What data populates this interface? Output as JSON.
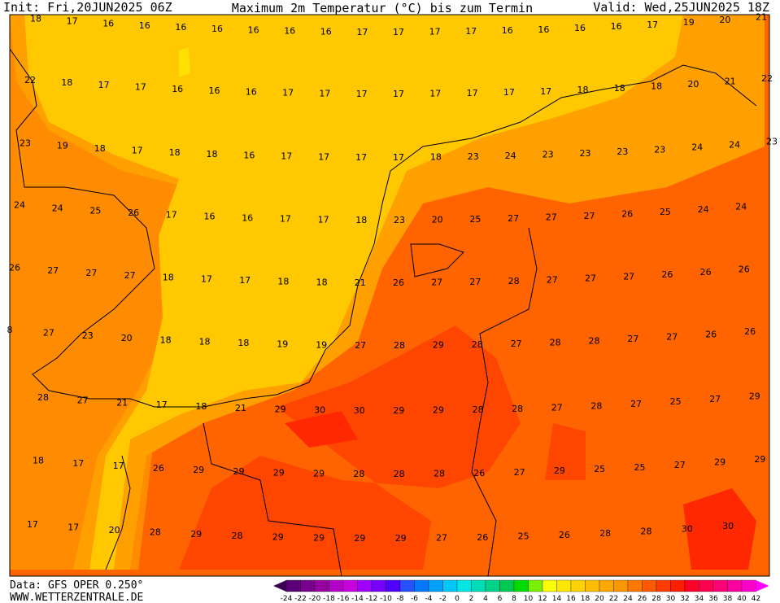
{
  "header": {
    "init": "Init: Fri,20JUN2025 06Z",
    "title": "Maximum 2m Temperatur (°C) bis zum Termin",
    "valid": "Valid: Wed,25JUN2025 18Z"
  },
  "rows": [
    [
      18,
      17,
      16,
      16,
      16,
      16,
      16,
      16,
      16,
      17,
      17,
      17,
      17,
      16,
      16,
      16,
      16,
      17,
      19,
      20,
      21
    ],
    [
      22,
      18,
      17,
      17,
      16,
      16,
      16,
      17,
      17,
      17,
      17,
      17,
      17,
      17,
      17,
      18,
      18,
      18,
      20,
      21,
      22
    ],
    [
      23,
      19,
      18,
      17,
      18,
      18,
      16,
      17,
      17,
      17,
      17,
      18,
      23,
      24,
      23,
      23,
      23,
      23,
      24,
      24,
      23
    ],
    [
      24,
      24,
      25,
      26,
      17,
      16,
      16,
      17,
      17,
      18,
      23,
      20,
      25,
      27,
      27,
      27,
      26,
      25,
      24,
      24
    ],
    [
      26,
      27,
      27,
      27,
      18,
      17,
      17,
      18,
      18,
      21,
      26,
      27,
      27,
      28,
      27,
      27,
      27,
      26,
      26,
      26
    ],
    [
      8,
      27,
      23,
      20,
      18,
      18,
      18,
      19,
      19,
      27,
      28,
      29,
      28,
      27,
      28,
      28,
      27,
      27,
      26,
      26
    ],
    [
      28,
      27,
      21,
      17,
      18,
      21,
      29,
      30,
      30,
      29,
      29,
      28,
      28,
      27,
      28,
      27,
      25,
      27,
      29
    ],
    [
      18,
      17,
      17,
      26,
      29,
      29,
      29,
      29,
      28,
      28,
      28,
      26,
      27,
      29,
      25,
      25,
      27,
      29,
      29
    ],
    [
      17,
      17,
      20,
      28,
      29,
      28,
      29,
      29,
      29,
      29,
      27,
      26,
      25,
      26,
      28,
      28,
      30,
      30
    ]
  ],
  "colorbar": {
    "ticks": [
      -24,
      -22,
      -20,
      -18,
      -16,
      -14,
      -12,
      -10,
      -8,
      -6,
      -4,
      -2,
      0,
      2,
      4,
      6,
      8,
      10,
      12,
      14,
      16,
      18,
      20,
      22,
      24,
      26,
      28,
      30,
      32,
      34,
      36,
      38,
      40,
      42
    ]
  },
  "footer": {
    "source": "Data: GFS OPER 0.250°",
    "site": "WWW.WETTERZENTRALE.DE"
  }
}
